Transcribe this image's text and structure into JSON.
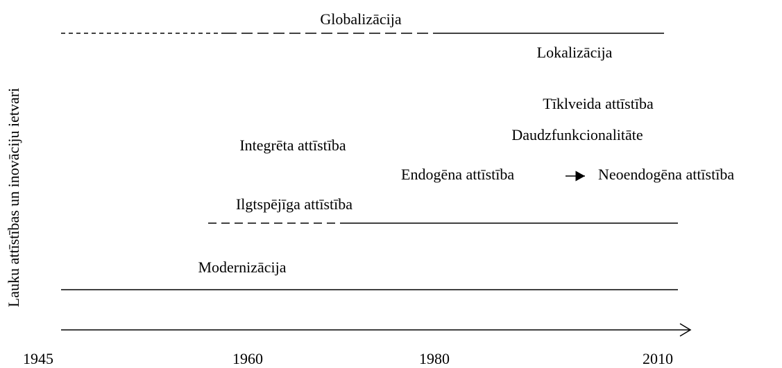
{
  "y_axis_label": "Lauku attīstības un inovāciju ietvari",
  "x_axis_labels": [
    "1945",
    "1960",
    "1980",
    "2010"
  ],
  "labels": {
    "globalization": "Globalizācija",
    "localization": "Lokalizācija",
    "network": "Tīklveida attīstība",
    "multifunctionality": "Daudzfunkcionalitāte",
    "integrated": "Integrēta attīstība",
    "endogenous": "Endogēna attīstība",
    "neoendogenous": "Neoendogēna attīstība",
    "sustainable": "Ilgtspējīga attīstība",
    "modernization": "Modernizācija"
  }
}
